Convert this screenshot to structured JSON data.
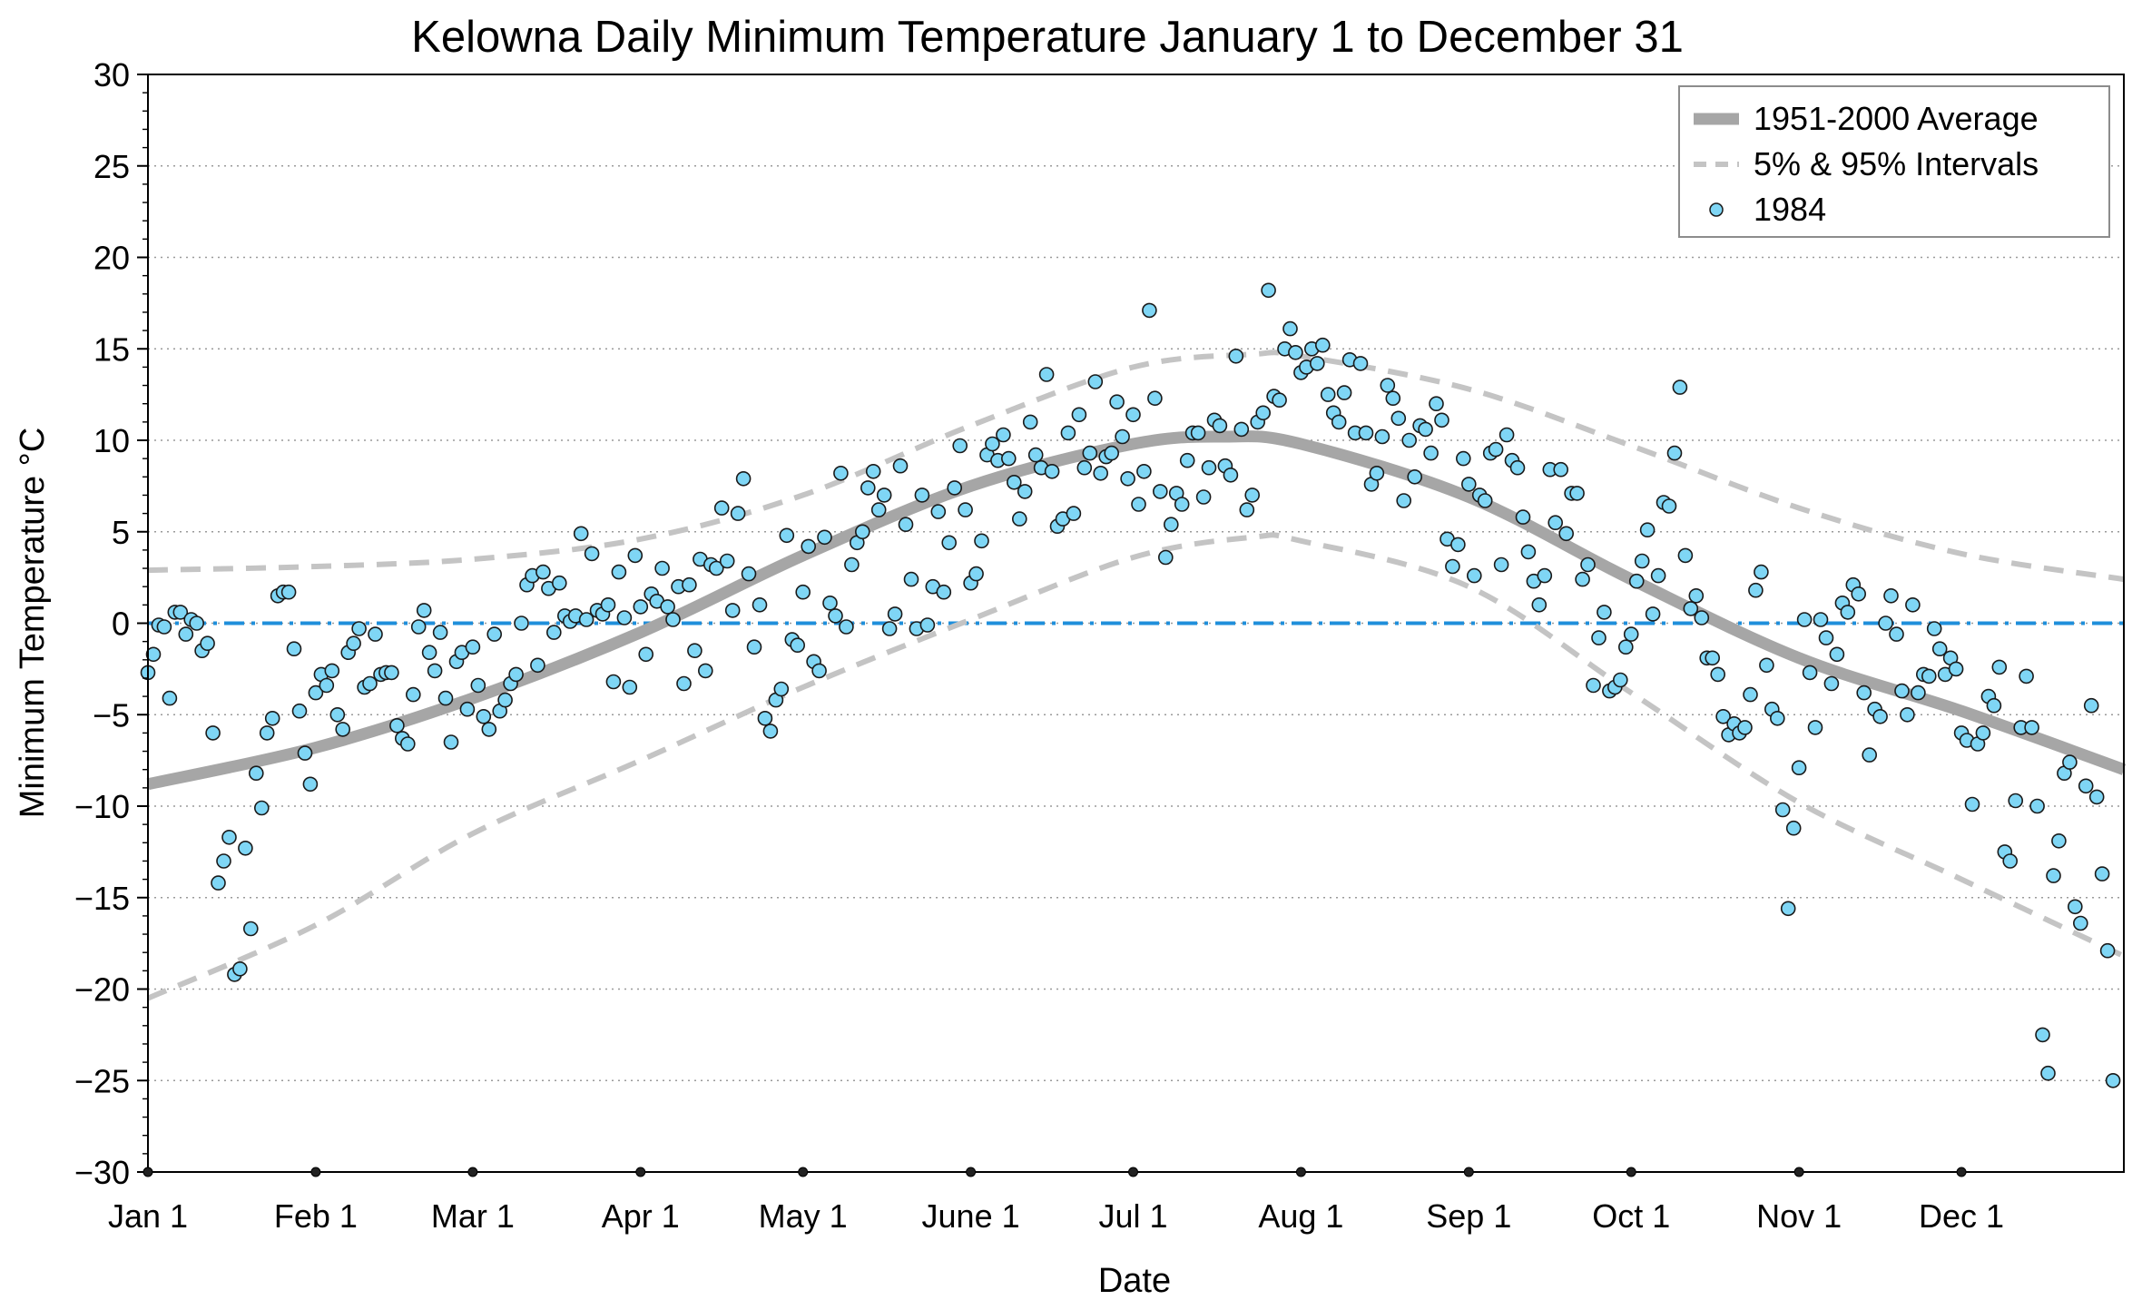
{
  "chart_data": {
    "type": "scatter",
    "title": "Kelowna Daily Minimum Temperature January 1 to December 31",
    "xlabel": "Date",
    "ylabel": "Minimum Temperature °C",
    "ylim": [
      -30,
      30
    ],
    "xlim": [
      1,
      366
    ],
    "grid": "horizontal dotted",
    "legend_position": "top-right",
    "yticks": [
      "30",
      "25",
      "20",
      "15",
      "10",
      "5",
      "0",
      "−5",
      "−10",
      "−15",
      "−20",
      "−25",
      "−30"
    ],
    "ytick_values": [
      30,
      25,
      20,
      15,
      10,
      5,
      0,
      -5,
      -10,
      -15,
      -20,
      -25,
      -30
    ],
    "xticks": [
      "Jan 1",
      "Feb 1",
      "Mar 1",
      "Apr 1",
      "May 1",
      "June 1",
      "Jul 1",
      "Aug 1",
      "Sep 1",
      "Oct 1",
      "Nov 1",
      "Dec 1"
    ],
    "xtick_days": [
      1,
      32,
      61,
      92,
      122,
      153,
      183,
      214,
      245,
      275,
      306,
      336
    ],
    "zero_line": 0,
    "colors": {
      "average": "#a6a6a6",
      "intervals": "#c4c4c4",
      "points": "#7fd6f5",
      "zero_line": "#1f8fdb"
    },
    "legend": [
      "1951-2000 Average",
      "5% & 95% Intervals",
      "1984"
    ],
    "average_curve": {
      "days": [
        1,
        32,
        61,
        92,
        122,
        153,
        183,
        200,
        214,
        245,
        275,
        306,
        336,
        366
      ],
      "values": [
        -8.8,
        -6.8,
        -4.1,
        -0.5,
        3.7,
        7.5,
        9.8,
        10.2,
        9.8,
        6.9,
        2.4,
        -1.9,
        -4.8,
        -8.0
      ]
    },
    "interval_upper": {
      "days": [
        1,
        32,
        61,
        92,
        122,
        153,
        183,
        205,
        214,
        245,
        275,
        306,
        336,
        366
      ],
      "values": [
        2.9,
        3.1,
        3.5,
        4.6,
        7.0,
        10.8,
        14.0,
        14.7,
        14.6,
        12.8,
        9.7,
        6.3,
        3.8,
        2.4
      ]
    },
    "interval_lower": {
      "days": [
        1,
        32,
        61,
        92,
        122,
        153,
        183,
        205,
        214,
        245,
        275,
        306,
        336,
        366
      ],
      "values": [
        -20.5,
        -16.5,
        -11.5,
        -7.5,
        -3.5,
        0.2,
        3.6,
        4.7,
        4.5,
        2.0,
        -3.8,
        -9.8,
        -14.0,
        -18.2
      ]
    },
    "series": [
      {
        "name": "1984",
        "values": [
          -2.7,
          -1.7,
          -0.1,
          -0.2,
          -4.1,
          0.6,
          0.6,
          -0.6,
          0.2,
          0.0,
          -1.5,
          -1.1,
          -6.0,
          -14.2,
          -13.0,
          -11.7,
          -19.2,
          -18.9,
          -12.3,
          -16.7,
          -8.2,
          -10.1,
          -6.0,
          -5.2,
          1.5,
          1.7,
          1.7,
          -1.4,
          -4.8,
          -7.1,
          -8.8,
          -3.8,
          -2.8,
          -3.4,
          -2.6,
          -5.0,
          -5.8,
          -1.6,
          -1.1,
          -0.3,
          -3.5,
          -3.3,
          -0.6,
          -2.8,
          -2.7,
          -2.7,
          -5.6,
          -6.3,
          -6.6,
          -3.9,
          -0.2,
          0.7,
          -1.6,
          -2.6,
          -0.5,
          -4.1,
          -6.5,
          -2.1,
          -1.6,
          -4.7,
          -1.3,
          -3.4,
          -5.1,
          -5.8,
          -0.6,
          -4.8,
          -4.2,
          -3.3,
          -2.8,
          0.0,
          2.1,
          2.6,
          -2.3,
          2.8,
          1.9,
          -0.5,
          2.2,
          0.4,
          0.1,
          0.4,
          4.9,
          0.2,
          3.8,
          0.7,
          0.5,
          1.0,
          -3.2,
          2.8,
          0.3,
          -3.5,
          3.7,
          0.9,
          -1.7,
          1.6,
          1.2,
          3.0,
          0.9,
          0.2,
          2.0,
          -3.3,
          2.1,
          -1.5,
          3.5,
          -2.6,
          3.2,
          3.0,
          6.3,
          3.4,
          0.7,
          6.0,
          7.9,
          2.7,
          -1.3,
          1.0,
          -5.2,
          -5.9,
          -4.2,
          -3.6,
          4.8,
          -0.9,
          -1.2,
          1.7,
          4.2,
          -2.1,
          -2.6,
          4.7,
          1.1,
          0.4,
          8.2,
          -0.2,
          3.2,
          4.4,
          5.0,
          7.4,
          8.3,
          6.2,
          7.0,
          -0.3,
          0.5,
          8.6,
          5.4,
          2.4,
          -0.3,
          7.0,
          -0.1,
          2.0,
          6.1,
          1.7,
          4.4,
          7.4,
          9.7,
          6.2,
          2.2,
          2.7,
          4.5,
          9.2,
          9.8,
          8.9,
          10.3,
          9.0,
          7.7,
          5.7,
          7.2,
          11.0,
          9.2,
          8.5,
          13.6,
          8.3,
          5.3,
          5.7,
          10.4,
          6.0,
          11.4,
          8.5,
          9.3,
          13.2,
          8.2,
          9.1,
          9.3,
          12.1,
          10.2,
          7.9,
          11.4,
          6.5,
          8.3,
          17.1,
          12.3,
          7.2,
          3.6,
          5.4,
          7.1,
          6.5,
          8.9,
          10.4,
          10.4,
          6.9,
          8.5,
          11.1,
          10.8,
          8.6,
          8.1,
          14.6,
          10.6,
          6.2,
          7.0,
          11.0,
          11.5,
          18.2,
          12.4,
          12.2,
          15.0,
          16.1,
          14.8,
          13.7,
          14.0,
          15.0,
          14.2,
          15.2,
          12.5,
          11.5,
          11.0,
          12.6,
          14.4,
          10.4,
          14.2,
          10.4,
          7.6,
          8.2,
          10.2,
          13.0,
          12.3,
          11.2,
          6.7,
          10.0,
          8.0,
          10.8,
          10.6,
          9.3,
          12.0,
          11.1,
          4.6,
          3.1,
          4.3,
          9.0,
          7.6,
          2.6,
          7.0,
          6.7,
          9.3,
          9.5,
          3.2,
          10.3,
          8.9,
          8.5,
          5.8,
          3.9,
          2.3,
          1.0,
          2.6,
          8.4,
          5.5,
          8.4,
          4.9,
          7.1,
          7.1,
          2.4,
          3.2,
          -3.4,
          -0.8,
          0.6,
          -3.7,
          -3.5,
          -3.1,
          -1.3,
          -0.6,
          2.3,
          3.4,
          5.1,
          0.5,
          2.6,
          6.6,
          6.4,
          9.3,
          12.9,
          3.7,
          0.8,
          1.5,
          0.3,
          -1.9,
          -1.9,
          -2.8,
          -5.1,
          -6.1,
          -5.5,
          -6.0,
          -5.7,
          -3.9,
          1.8,
          2.8,
          -2.3,
          -4.7,
          -5.2,
          -10.2,
          -15.6,
          -11.2,
          -7.9,
          0.2,
          -2.7,
          -5.7,
          0.2,
          -0.8,
          -3.3,
          -1.7,
          1.1,
          0.6,
          2.1,
          1.6,
          -3.8,
          -7.2,
          -4.7,
          -5.1,
          0.0,
          1.5,
          -0.6,
          -3.7,
          -5.0,
          1.0,
          -3.8,
          -2.8,
          -2.9,
          -0.3,
          -1.4,
          -2.8,
          -1.9,
          -2.5,
          -6.0,
          -6.4,
          -9.9,
          -6.6,
          -6.0,
          -4.0,
          -4.5,
          -2.4,
          -12.5,
          -13.0,
          -9.7,
          -5.7,
          -2.9,
          -5.7,
          -10.0,
          -22.5,
          -24.6,
          -13.8,
          -11.9,
          -8.2,
          -7.6,
          -15.5,
          -16.4,
          -8.9,
          -4.5,
          -9.5,
          -13.7,
          -17.9,
          -25.0
        ]
      }
    ]
  }
}
